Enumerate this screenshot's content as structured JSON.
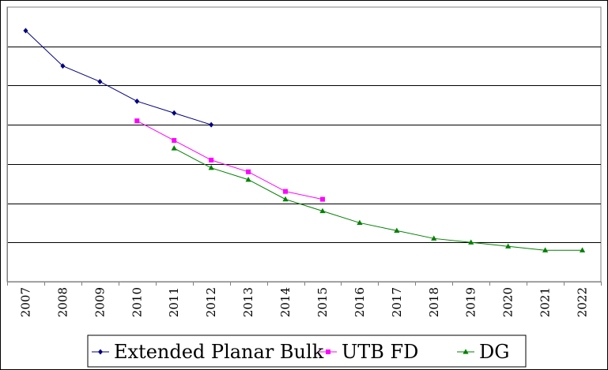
{
  "chart_data": {
    "type": "line",
    "title": "",
    "xlabel": "",
    "ylabel": "",
    "categories": [
      "2007",
      "2008",
      "2009",
      "2010",
      "2011",
      "2012",
      "2013",
      "2014",
      "2015",
      "2016",
      "2017",
      "2018",
      "2019",
      "2020",
      "2021",
      "2022"
    ],
    "y_gridlines": 6,
    "grid": "horizontal",
    "legend_position": "bottom",
    "series": [
      {
        "name": "Extended Planar Bulk",
        "color": "#000080",
        "marker": "diamond",
        "values": [
          6.4,
          5.5,
          5.1,
          4.6,
          4.3,
          4.0,
          null,
          null,
          null,
          null,
          null,
          null,
          null,
          null,
          null,
          null
        ]
      },
      {
        "name": "UTB FD",
        "color": "#ff00ff",
        "marker": "square",
        "values": [
          null,
          null,
          null,
          4.1,
          3.6,
          3.1,
          2.8,
          2.3,
          2.1,
          null,
          null,
          null,
          null,
          null,
          null,
          null
        ]
      },
      {
        "name": "DG",
        "color": "#008000",
        "marker": "triangle",
        "values": [
          null,
          null,
          null,
          null,
          3.4,
          2.9,
          2.6,
          2.1,
          1.8,
          1.5,
          1.3,
          1.1,
          1.0,
          0.9,
          0.8,
          0.8
        ]
      }
    ]
  }
}
